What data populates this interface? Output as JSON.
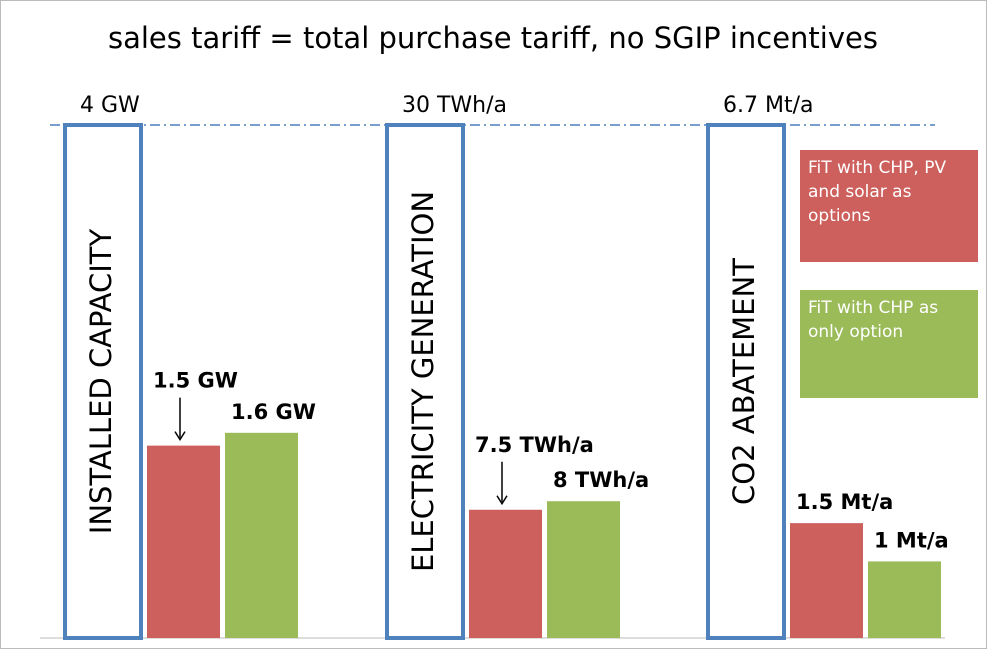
{
  "title": "sales tariff = total purchase tariff, no SGIP incentives",
  "legend": [
    {
      "name": "FiT with CHP, PV and solar as options",
      "color": "#cd605c"
    },
    {
      "name": "FiT with CHP as only option",
      "color": "#9bbb59"
    }
  ],
  "chart_data": [
    {
      "type": "bar",
      "label": "INSTALLED CAPACITY",
      "total": 4,
      "total_label": "4 GW",
      "values": [
        1.5,
        1.6
      ],
      "value_labels": [
        "1.5 GW",
        "1.6 GW"
      ],
      "arrow": true
    },
    {
      "type": "bar",
      "label": "ELECTRICITY GENERATION",
      "total": 30,
      "total_label": "30 TWh/a",
      "values": [
        7.5,
        8
      ],
      "value_labels": [
        "7.5 TWh/a",
        "8 TWh/a"
      ],
      "arrow": true
    },
    {
      "type": "bar",
      "label": "CO2 ABATEMENT",
      "total": 6.7,
      "total_label": "6.7 Mt/a",
      "values": [
        1.5,
        1
      ],
      "value_labels": [
        "1.5 Mt/a",
        "1 Mt/a"
      ],
      "arrow": false
    }
  ]
}
